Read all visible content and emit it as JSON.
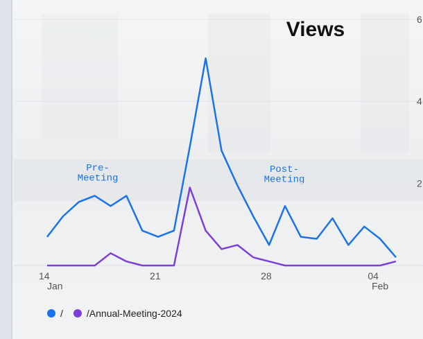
{
  "chart_data": {
    "type": "line",
    "title": "Views",
    "categories": [
      "14\nJan",
      null,
      null,
      null,
      null,
      null,
      null,
      "21",
      null,
      null,
      null,
      null,
      null,
      null,
      "28",
      null,
      null,
      null,
      null,
      null,
      null,
      "04\nFeb",
      null
    ],
    "series": [
      {
        "name": "/",
        "color": "#1a73e8",
        "values": [
          0.7,
          1.2,
          1.55,
          1.7,
          1.45,
          1.7,
          0.85,
          0.7,
          0.85,
          2.9,
          5.05,
          2.8,
          1.95,
          1.2,
          0.5,
          1.45,
          0.7,
          0.65,
          1.15,
          0.5,
          0.95,
          0.65,
          0.2
        ]
      },
      {
        "name": "/Annual-Meeting-2024",
        "color": "#7b3fd6",
        "values": [
          0,
          0,
          0,
          0,
          0.3,
          0.1,
          0,
          0,
          0,
          1.9,
          0.85,
          0.4,
          0.5,
          0.2,
          0.1,
          0,
          0,
          0,
          0,
          0,
          0,
          0,
          0.1
        ]
      }
    ],
    "ylim": [
      0,
      6.2
    ],
    "yticks": [
      2,
      4,
      6
    ],
    "grid": true,
    "annotations": [
      "Pre-\nMeeting",
      "Post-\nMeeting"
    ]
  }
}
